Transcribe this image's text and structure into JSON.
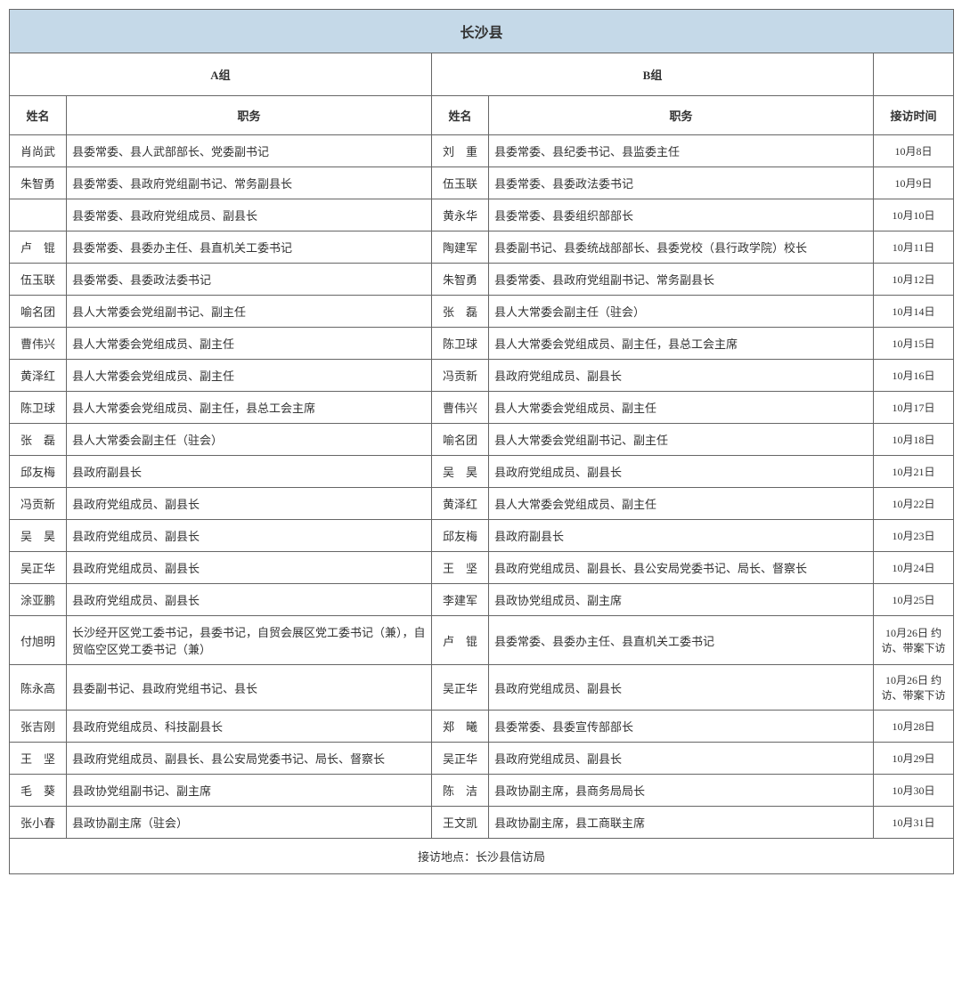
{
  "title": "长沙县",
  "groupA": "A组",
  "groupB": "B组",
  "colName": "姓名",
  "colPosition": "职务",
  "colDate": "接访时间",
  "footer": "接访地点：长沙县信访局",
  "rows": [
    {
      "nameA": "肖尚武",
      "posA": "县委常委、县人武部部长、党委副书记",
      "nameB": "刘　重",
      "posB": "县委常委、县纪委书记、县监委主任",
      "date": "10月8日"
    },
    {
      "nameA": "朱智勇",
      "posA": "县委常委、县政府党组副书记、常务副县长",
      "nameB": "伍玉联",
      "posB": "县委常委、县委政法委书记",
      "date": "10月9日"
    },
    {
      "nameA": "",
      "posA": "县委常委、县政府党组成员、副县长",
      "nameB": "黄永华",
      "posB": "县委常委、县委组织部部长",
      "date": "10月10日"
    },
    {
      "nameA": "卢　锟",
      "posA": "县委常委、县委办主任、县直机关工委书记",
      "nameB": "陶建军",
      "posB": "县委副书记、县委统战部部长、县委党校（县行政学院）校长",
      "date": "10月11日"
    },
    {
      "nameA": "伍玉联",
      "posA": "县委常委、县委政法委书记",
      "nameB": "朱智勇",
      "posB": "县委常委、县政府党组副书记、常务副县长",
      "date": "10月12日"
    },
    {
      "nameA": "喻名团",
      "posA": "县人大常委会党组副书记、副主任",
      "nameB": "张　磊",
      "posB": "县人大常委会副主任（驻会）",
      "date": "10月14日"
    },
    {
      "nameA": "曹伟兴",
      "posA": "县人大常委会党组成员、副主任",
      "nameB": "陈卫球",
      "posB": "县人大常委会党组成员、副主任，县总工会主席",
      "date": "10月15日"
    },
    {
      "nameA": "黄泽红",
      "posA": "县人大常委会党组成员、副主任",
      "nameB": "冯贡新",
      "posB": "县政府党组成员、副县长",
      "date": "10月16日"
    },
    {
      "nameA": "陈卫球",
      "posA": "县人大常委会党组成员、副主任，县总工会主席",
      "nameB": "曹伟兴",
      "posB": "县人大常委会党组成员、副主任",
      "date": "10月17日"
    },
    {
      "nameA": "张　磊",
      "posA": "县人大常委会副主任（驻会）",
      "nameB": "喻名团",
      "posB": "县人大常委会党组副书记、副主任",
      "date": "10月18日"
    },
    {
      "nameA": "邱友梅",
      "posA": "县政府副县长",
      "nameB": "吴　昊",
      "posB": "县政府党组成员、副县长",
      "date": "10月21日"
    },
    {
      "nameA": "冯贡新",
      "posA": "县政府党组成员、副县长",
      "nameB": "黄泽红",
      "posB": "县人大常委会党组成员、副主任",
      "date": "10月22日"
    },
    {
      "nameA": "吴　昊",
      "posA": "县政府党组成员、副县长",
      "nameB": "邱友梅",
      "posB": "县政府副县长",
      "date": "10月23日"
    },
    {
      "nameA": "吴正华",
      "posA": "县政府党组成员、副县长",
      "nameB": "王　坚",
      "posB": "县政府党组成员、副县长、县公安局党委书记、局长、督察长",
      "date": "10月24日"
    },
    {
      "nameA": "涂亚鹏",
      "posA": "县政府党组成员、副县长",
      "nameB": "李建军",
      "posB": "县政协党组成员、副主席",
      "date": "10月25日"
    },
    {
      "nameA": "付旭明",
      "posA": "长沙经开区党工委书记，县委书记，自贸会展区党工委书记（兼），自贸临空区党工委书记（兼）",
      "nameB": "卢　锟",
      "posB": "县委常委、县委办主任、县直机关工委书记",
      "date": "10月26日 约访、带案下访"
    },
    {
      "nameA": "陈永高",
      "posA": "县委副书记、县政府党组书记、县长",
      "nameB": "吴正华",
      "posB": "县政府党组成员、副县长",
      "date": "10月26日 约访、带案下访"
    },
    {
      "nameA": "张吉刚",
      "posA": "县政府党组成员、科技副县长",
      "nameB": "郑　曦",
      "posB": "县委常委、县委宣传部部长",
      "date": "10月28日"
    },
    {
      "nameA": "王　坚",
      "posA": "县政府党组成员、副县长、县公安局党委书记、局长、督察长",
      "nameB": "吴正华",
      "posB": "县政府党组成员、副县长",
      "date": "10月29日"
    },
    {
      "nameA": "毛　葵",
      "posA": "县政协党组副书记、副主席",
      "nameB": "陈　洁",
      "posB": "县政协副主席，县商务局局长",
      "date": "10月30日"
    },
    {
      "nameA": "张小春",
      "posA": "县政协副主席（驻会）",
      "nameB": "王文凯",
      "posB": "县政协副主席，县工商联主席",
      "date": "10月31日"
    }
  ]
}
